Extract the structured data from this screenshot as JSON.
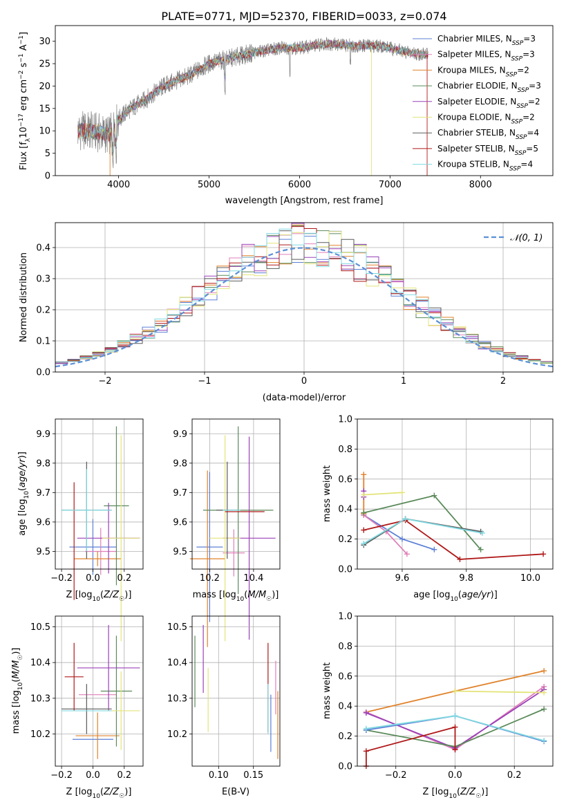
{
  "figure": {
    "title": "PLATE=0771, MJD=52370, FIBERID=0033, z=0.074"
  },
  "colors": {
    "Chabrier MILES": "#5b7fd6",
    "Salpeter MILES": "#e07fb8",
    "Kroupa MILES": "#e0822a",
    "Chabrier ELODIE": "#5a8a5a",
    "Salpeter ELODIE": "#9a40b8",
    "Kroupa ELODIE": "#e3e47a",
    "Chabrier STELIB": "#5a5a5a",
    "Salpeter STELIB": "#b01818",
    "Kroupa STELIB": "#7fd8e0",
    "data": "#808080",
    "gauss": "#5b8fd6"
  },
  "chart_data": [
    {
      "id": "spectrum",
      "type": "line",
      "xlabel": "wavelength [Angstrom, rest frame]",
      "ylabel": "Flux [f_λ10^-17 erg cm^-2 s^-1 A^-1]",
      "xlim": [
        3300,
        8800
      ],
      "ylim": [
        0,
        33.5
      ],
      "xticks": [
        4000,
        5000,
        6000,
        7000,
        8000
      ],
      "yticks": [
        0,
        5,
        10,
        15,
        20,
        25,
        30
      ],
      "grid": false,
      "legend": "right",
      "legend_entries": [
        {
          "model": "Chabrier MILES",
          "nssp": "3"
        },
        {
          "model": "Salpeter MILES",
          "nssp": "3"
        },
        {
          "model": "Kroupa MILES",
          "nssp": "2"
        },
        {
          "model": "Chabrier ELODIE",
          "nssp": "3"
        },
        {
          "model": "Salpeter ELODIE",
          "nssp": "2"
        },
        {
          "model": "Kroupa ELODIE",
          "nssp": "2"
        },
        {
          "model": "Chabrier STELIB",
          "nssp": "4"
        },
        {
          "model": "Salpeter STELIB",
          "nssp": "5"
        },
        {
          "model": "Kroupa STELIB",
          "nssp": "4"
        }
      ],
      "continuum_knots": {
        "x": [
          3550,
          3700,
          3800,
          3900,
          4000,
          4100,
          4300,
          4500,
          4800,
          5000,
          5200,
          5500,
          5800,
          6000,
          6300,
          6600,
          6900,
          7200,
          7400
        ],
        "y": [
          10,
          10,
          9.5,
          9,
          12.5,
          14.5,
          17,
          20,
          22.5,
          25,
          26,
          27.5,
          28.5,
          28.5,
          29.5,
          29,
          29,
          27.5,
          27
        ]
      }
    },
    {
      "id": "residual-hist",
      "type": "line",
      "xlabel": "(data-model)/error",
      "ylabel": "Normed distribution",
      "xlim": [
        -2.5,
        2.5
      ],
      "ylim": [
        0,
        0.48
      ],
      "xticks": [
        -2,
        -1,
        0,
        1,
        2
      ],
      "yticks": [
        0.0,
        0.1,
        0.2,
        0.3,
        0.4
      ],
      "grid": true,
      "legend": "top-right",
      "legend_label": "𝒩(0, 1)",
      "bins": 40,
      "gauss_sigma": 1.0,
      "gauss_amplitude": 0.399
    },
    {
      "id": "age-vs-z",
      "type": "scatter",
      "xlabel": "Z [log10(Z/Z☉)]",
      "ylabel": "age [log10(age/yr)]",
      "xlim": [
        -0.24,
        0.32
      ],
      "ylim": [
        9.44,
        9.95
      ],
      "xticks": [
        -0.2,
        0.0,
        0.2
      ],
      "yticks": [
        9.5,
        9.6,
        9.7,
        9.8,
        9.9
      ],
      "grid": true,
      "points": [
        {
          "m": "Chabrier MILES",
          "x": 0.0,
          "y": 9.515,
          "xe": 0.15,
          "ye": 0.095
        },
        {
          "m": "Salpeter MILES",
          "x": 0.05,
          "y": 9.5,
          "xe": 0.1,
          "ye": 0.08
        },
        {
          "m": "Kroupa MILES",
          "x": 0.03,
          "y": 9.475,
          "xe": 0.15,
          "ye": 0.025
        },
        {
          "m": "Chabrier ELODIE",
          "x": 0.15,
          "y": 9.655,
          "xe": 0.08,
          "ye": 0.27
        },
        {
          "m": "Salpeter ELODIE",
          "x": 0.1,
          "y": 9.545,
          "xe": 0.2,
          "ye": 0.12
        },
        {
          "m": "Kroupa ELODIE",
          "x": 0.18,
          "y": 9.545,
          "xe": 0.12,
          "ye": 0.35
        },
        {
          "m": "Chabrier STELIB",
          "x": -0.04,
          "y": 9.64,
          "xe": 0.16,
          "ye": 0.165
        },
        {
          "m": "Salpeter STELIB",
          "x": -0.12,
          "y": 9.535,
          "xe": 0.0,
          "ye": 0.2
        },
        {
          "m": "Kroupa STELIB",
          "x": -0.04,
          "y": 9.64,
          "xe": 0.16,
          "ye": 0.14
        }
      ]
    },
    {
      "id": "age-vs-mass",
      "type": "scatter",
      "xlabel": "mass [log10(M/M☉)]",
      "ylabel": "",
      "xlim": [
        10.12,
        10.52
      ],
      "ylim": [
        9.44,
        9.95
      ],
      "xticks": [
        10.2,
        10.4
      ],
      "yticks": [
        9.5,
        9.6,
        9.7,
        9.8,
        9.9
      ],
      "grid": true,
      "points": [
        {
          "m": "Chabrier MILES",
          "x": 10.2,
          "y": 9.515,
          "xe": 0.06,
          "ye": 0.255
        },
        {
          "m": "Salpeter MILES",
          "x": 10.31,
          "y": 9.495,
          "xe": 0.05,
          "ye": 0.08
        },
        {
          "m": "Kroupa MILES",
          "x": 10.19,
          "y": 9.475,
          "xe": 0.08,
          "ye": 0.3
        },
        {
          "m": "Chabrier ELODIE",
          "x": 10.33,
          "y": 9.64,
          "xe": 0.16,
          "ye": 0.285
        },
        {
          "m": "Salpeter ELODIE",
          "x": 10.38,
          "y": 9.545,
          "xe": 0.12,
          "ye": 0.345
        },
        {
          "m": "Kroupa ELODIE",
          "x": 10.27,
          "y": 9.545,
          "xe": 0.07,
          "ye": 0.35
        },
        {
          "m": "Chabrier STELIB",
          "x": 10.28,
          "y": 9.64,
          "xe": 0.05,
          "ye": 0.165
        },
        {
          "m": "Salpeter STELIB",
          "x": 10.36,
          "y": 9.635,
          "xe": 0.09,
          "ye": 0.0
        },
        {
          "m": "Kroupa STELIB",
          "x": 10.3,
          "y": 9.64,
          "xe": 0.04,
          "ye": 0.0
        }
      ]
    },
    {
      "id": "weight-vs-age",
      "type": "line",
      "xlabel": "age [log10(age/yr)]",
      "ylabel": "mass weight",
      "xlim": [
        9.46,
        10.07
      ],
      "ylim": [
        0.0,
        1.0
      ],
      "xticks": [
        9.6,
        9.8,
        10.0
      ],
      "yticks": [
        0.0,
        0.2,
        0.4,
        0.6,
        0.8,
        1.0
      ],
      "grid": true,
      "series": [
        {
          "name": "Chabrier MILES",
          "x": [
            9.48,
            9.6,
            9.7
          ],
          "y": [
            0.36,
            0.2,
            0.13
          ]
        },
        {
          "name": "Salpeter MILES",
          "x": [
            9.48,
            9.55,
            9.615
          ],
          "y": [
            0.36,
            0.25,
            0.1
          ]
        },
        {
          "name": "Kroupa MILES",
          "x": [
            9.48,
            9.48
          ],
          "y": [
            0.63,
            0.37
          ]
        },
        {
          "name": "Chabrier ELODIE",
          "x": [
            9.48,
            9.7,
            9.845
          ],
          "y": [
            0.375,
            0.49,
            0.13
          ]
        },
        {
          "name": "Salpeter ELODIE",
          "x": [
            9.48,
            9.48
          ],
          "y": [
            0.52,
            0.48
          ]
        },
        {
          "name": "Kroupa ELODIE",
          "x": [
            9.48,
            9.6
          ],
          "y": [
            0.495,
            0.51
          ]
        },
        {
          "name": "Chabrier STELIB",
          "x": [
            9.48,
            9.61,
            9.845
          ],
          "y": [
            0.16,
            0.335,
            0.25
          ]
        },
        {
          "name": "Salpeter STELIB",
          "x": [
            9.48,
            9.61,
            9.78,
            10.04
          ],
          "y": [
            0.26,
            0.325,
            0.065,
            0.1
          ]
        },
        {
          "name": "Kroupa STELIB",
          "x": [
            9.48,
            9.61,
            9.85
          ],
          "y": [
            0.17,
            0.335,
            0.24
          ]
        }
      ]
    },
    {
      "id": "mass-vs-z",
      "type": "scatter",
      "xlabel": "Z [log10(Z/Z☉)]",
      "ylabel": "mass [log10(M/M☉)]",
      "xlim": [
        -0.24,
        0.32
      ],
      "ylim": [
        10.11,
        10.53
      ],
      "xticks": [
        -0.2,
        0.0,
        0.2
      ],
      "yticks": [
        10.2,
        10.3,
        10.4,
        10.5
      ],
      "grid": true,
      "points": [
        {
          "m": "Chabrier MILES",
          "x": 0.0,
          "y": 10.185,
          "xe": 0.13,
          "ye": 0.0
        },
        {
          "m": "Salpeter MILES",
          "x": 0.03,
          "y": 10.31,
          "xe": 0.12,
          "ye": 0.0
        },
        {
          "m": "Kroupa MILES",
          "x": 0.03,
          "y": 10.195,
          "xe": 0.14,
          "ye": 0.065
        },
        {
          "m": "Chabrier ELODIE",
          "x": 0.15,
          "y": 10.32,
          "xe": 0.1,
          "ye": 0.155
        },
        {
          "m": "Salpeter ELODIE",
          "x": 0.1,
          "y": 10.385,
          "xe": 0.2,
          "ye": 0.12
        },
        {
          "m": "Kroupa ELODIE",
          "x": 0.18,
          "y": 10.265,
          "xe": 0.12,
          "ye": 0.11
        },
        {
          "m": "Chabrier STELIB",
          "x": -0.04,
          "y": 10.27,
          "xe": 0.16,
          "ye": 0.07
        },
        {
          "m": "Salpeter STELIB",
          "x": -0.12,
          "y": 10.36,
          "xe": 0.06,
          "ye": 0.095
        },
        {
          "m": "Kroupa STELIB",
          "x": -0.04,
          "y": 10.265,
          "xe": 0.16,
          "ye": 0.0
        }
      ]
    },
    {
      "id": "mass-vs-ebv",
      "type": "scatter",
      "xlabel": "E(B-V)",
      "ylabel": "",
      "xlim": [
        0.062,
        0.188
      ],
      "ylim": [
        10.11,
        10.53
      ],
      "xticks": [
        0.1,
        0.15
      ],
      "yticks": [
        10.2,
        10.3,
        10.4,
        10.5
      ],
      "grid": true,
      "points": [
        {
          "m": "Chabrier MILES",
          "x": 0.175,
          "y": 10.23,
          "xe": 0.0,
          "ye": 0.08
        },
        {
          "m": "Salpeter MILES",
          "x": 0.182,
          "y": 10.33,
          "xe": 0.0,
          "ye": 0.075
        },
        {
          "m": "Kroupa MILES",
          "x": 0.185,
          "y": 10.225,
          "xe": 0.0,
          "ye": 0.095
        },
        {
          "m": "Chabrier ELODIE",
          "x": 0.066,
          "y": 10.375,
          "xe": 0.0,
          "ye": 0.1
        },
        {
          "m": "Salpeter ELODIE",
          "x": 0.078,
          "y": 10.41,
          "xe": 0.0,
          "ye": 0.095
        },
        {
          "m": "Kroupa ELODIE",
          "x": 0.085,
          "y": 10.295,
          "xe": 0.0,
          "ye": 0.09
        },
        {
          "m": "Chabrier STELIB",
          "x": 0.17,
          "y": 10.3,
          "xe": 0.0,
          "ye": 0.0
        },
        {
          "m": "Salpeter STELIB",
          "x": 0.171,
          "y": 10.33,
          "xe": 0.0,
          "ye": 0.125
        },
        {
          "m": "Kroupa STELIB",
          "x": 0.171,
          "y": 10.27,
          "xe": 0.0,
          "ye": 0.07
        }
      ]
    },
    {
      "id": "weight-vs-z",
      "type": "line",
      "xlabel": "Z [log10(Z/Z☉)]",
      "ylabel": "mass weight",
      "xlim": [
        -0.33,
        0.33
      ],
      "ylim": [
        0.0,
        1.0
      ],
      "xticks": [
        -0.2,
        0.0,
        0.2
      ],
      "yticks": [
        0.0,
        0.2,
        0.4,
        0.6,
        0.8,
        1.0
      ],
      "grid": true,
      "series": [
        {
          "name": "Kroupa MILES",
          "x": [
            -0.3,
            0.0,
            0.3
          ],
          "y": [
            0.36,
            0.5,
            0.635
          ]
        },
        {
          "name": "Salpeter MILES",
          "x": [
            -0.3,
            0.0,
            0.3
          ],
          "y": [
            0.36,
            0.11,
            0.53
          ]
        },
        {
          "name": "Salpeter ELODIE",
          "x": [
            -0.3,
            0.0,
            0.3
          ],
          "y": [
            0.355,
            0.12,
            0.51
          ]
        },
        {
          "name": "Kroupa ELODIE",
          "x": [
            0.0,
            0.3
          ],
          "y": [
            0.5,
            0.49
          ]
        },
        {
          "name": "Chabrier ELODIE",
          "x": [
            -0.3,
            0.0,
            0.3
          ],
          "y": [
            0.24,
            0.13,
            0.38
          ]
        },
        {
          "name": "Chabrier MILES",
          "x": [
            -0.3,
            0.0,
            0.3
          ],
          "y": [
            0.24,
            0.335,
            0.165
          ]
        },
        {
          "name": "Kroupa STELIB",
          "x": [
            -0.3,
            0.0,
            0.3
          ],
          "y": [
            0.25,
            0.335,
            0.17
          ]
        },
        {
          "name": "Salpeter STELIB",
          "x": [
            -0.3,
            -0.3,
            0.0,
            0.0
          ],
          "y": [
            0.0,
            0.1,
            0.26,
            0.11
          ]
        }
      ]
    }
  ]
}
